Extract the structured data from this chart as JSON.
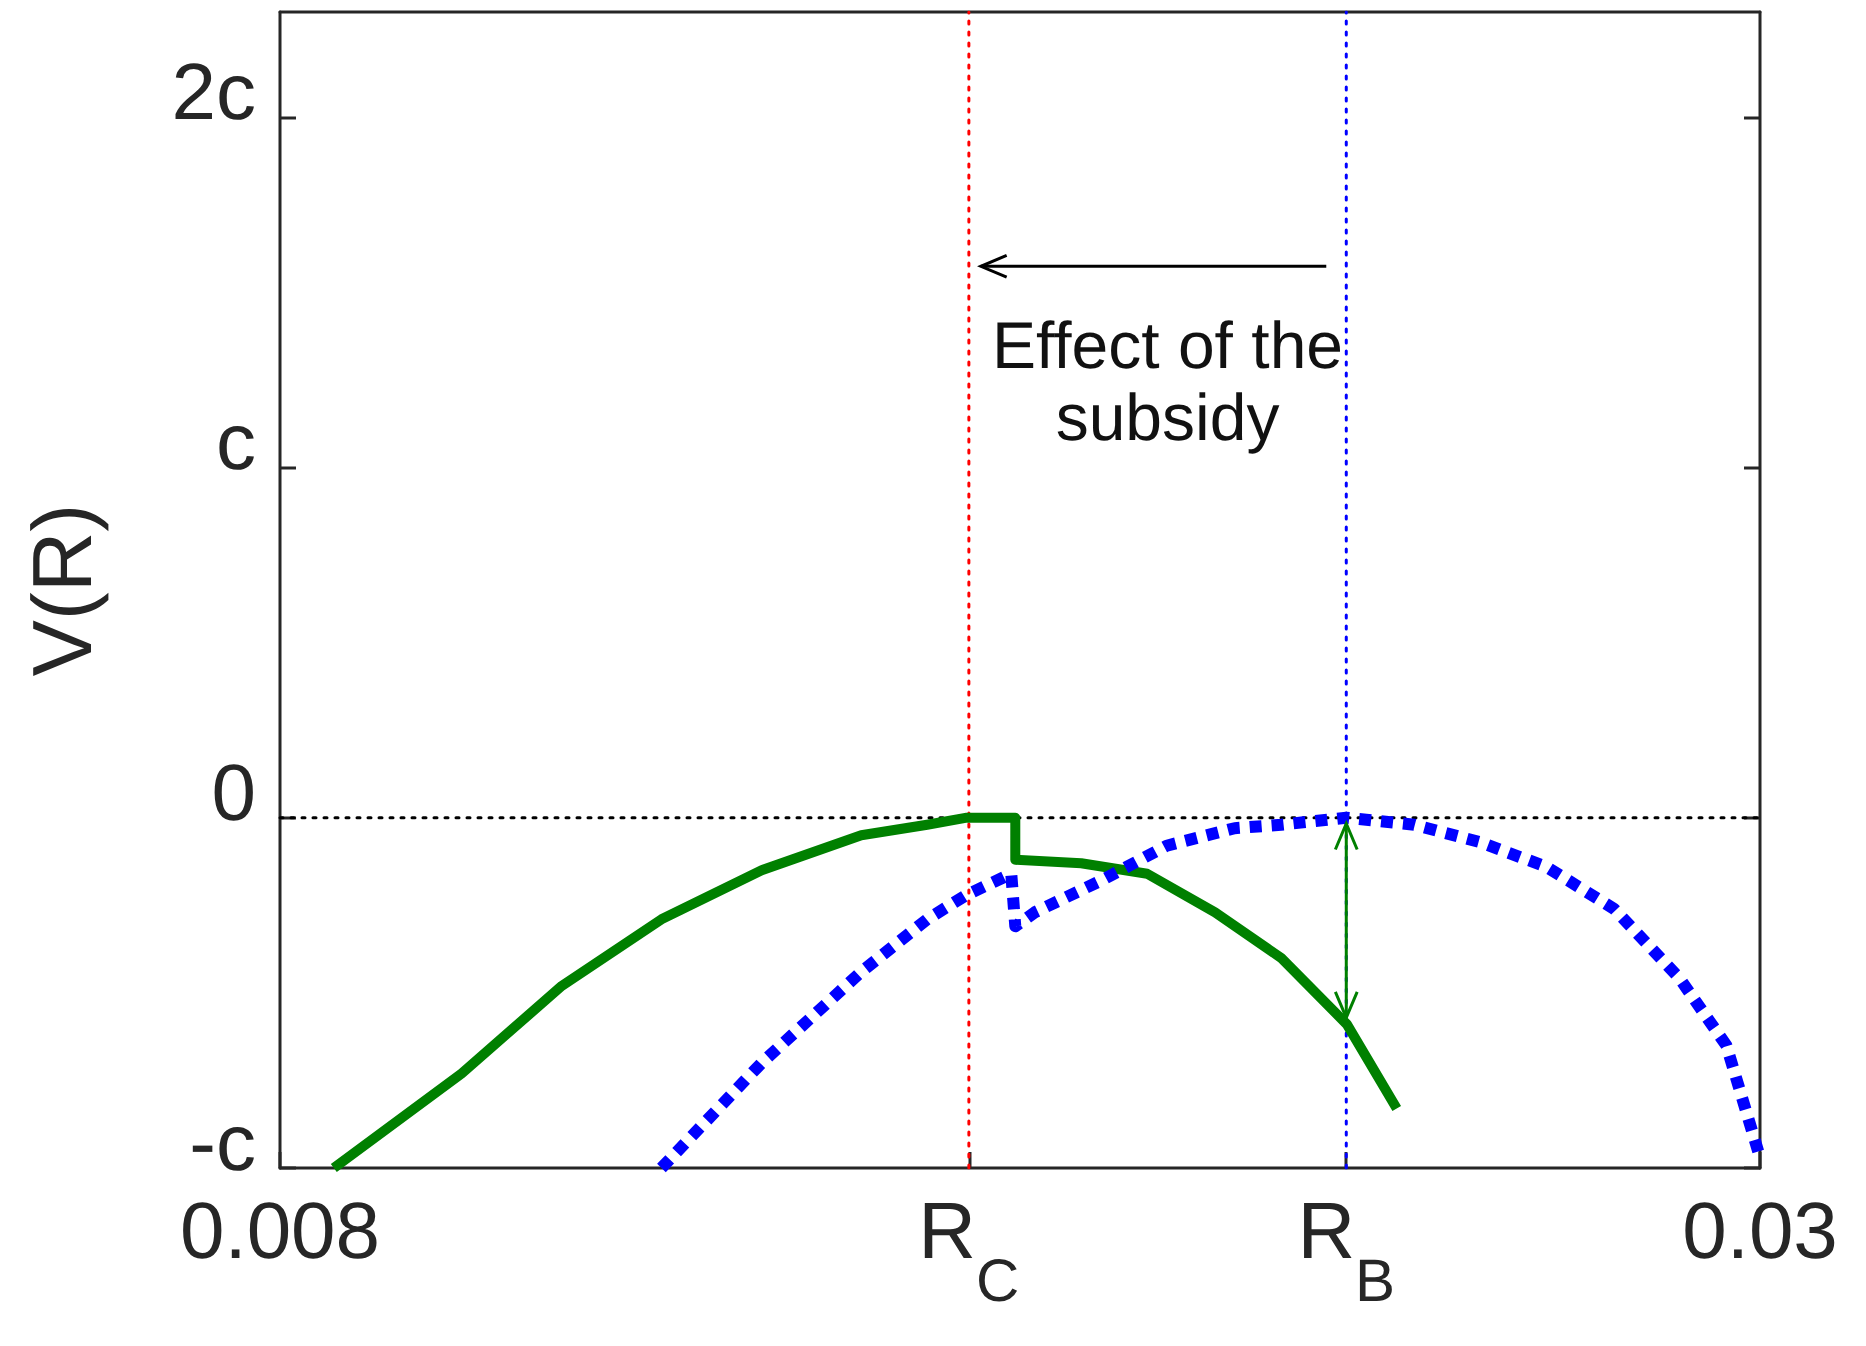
{
  "chart_data": {
    "type": "line",
    "ylabel": "V(R)",
    "xlim": [
      0.008,
      0.03
    ],
    "xticks": [
      0.008,
      {
        "value": 0.01824,
        "label": "R$_{C}$"
      },
      {
        "value": 0.02385,
        "label": "R$_{B}$"
      },
      0.03
    ],
    "ylim": [
      -1,
      2.3
    ],
    "yticks": [
      {
        "value": -1,
        "label": "-c"
      },
      0,
      {
        "value": 1,
        "label": "c"
      },
      {
        "value": 2,
        "label": "2c"
      }
    ],
    "series": [
      {
        "color": "#008000",
        "line_style": "solid",
        "x": [
          0.0088,
          0.0107,
          0.01219,
          0.01367,
          0.01516,
          0.01664,
          0.01762,
          0.01821,
          0.01893,
          0.01893,
          0.01991,
          0.02089,
          0.0219,
          0.02288,
          0.02386,
          0.0246
        ],
        "values": [
          -1,
          -0.73,
          -0.48,
          -0.29,
          -0.15,
          -0.05,
          -0.02,
          0,
          0,
          -0.12,
          -0.13,
          -0.16,
          -0.27,
          -0.4,
          -0.59,
          -0.83
        ]
      },
      {
        "color": "#0000ff",
        "line_style": "dotted",
        "x": [
          0.01367,
          0.01516,
          0.01664,
          0.01762,
          0.01821,
          0.01887,
          0.01893,
          0.01922,
          0.0202,
          0.02118,
          0.02219,
          0.02288,
          0.02385,
          0.02486,
          0.02584,
          0.02682,
          0.02783,
          0.02881,
          0.0295,
          0.03
        ],
        "values": [
          -1,
          -0.7,
          -0.44,
          -0.29,
          -0.22,
          -0.16,
          -0.31,
          -0.27,
          -0.18,
          -0.08,
          -0.03,
          -0.02,
          0,
          -0.02,
          -0.07,
          -0.14,
          -0.26,
          -0.46,
          -0.65,
          -0.97
        ]
      }
    ],
    "ref_lines": [
      {
        "axis": "x",
        "value": 0.01824,
        "color": "#ff0000",
        "line_style": "dotted"
      },
      {
        "axis": "x",
        "value": 0.02385,
        "color": "#0000ff",
        "line_style": "dotted"
      },
      {
        "axis": "y",
        "value": 0,
        "color": "#000000",
        "line_style": "dotted"
      }
    ],
    "annotations": [
      "Effect of the subsidy"
    ]
  }
}
